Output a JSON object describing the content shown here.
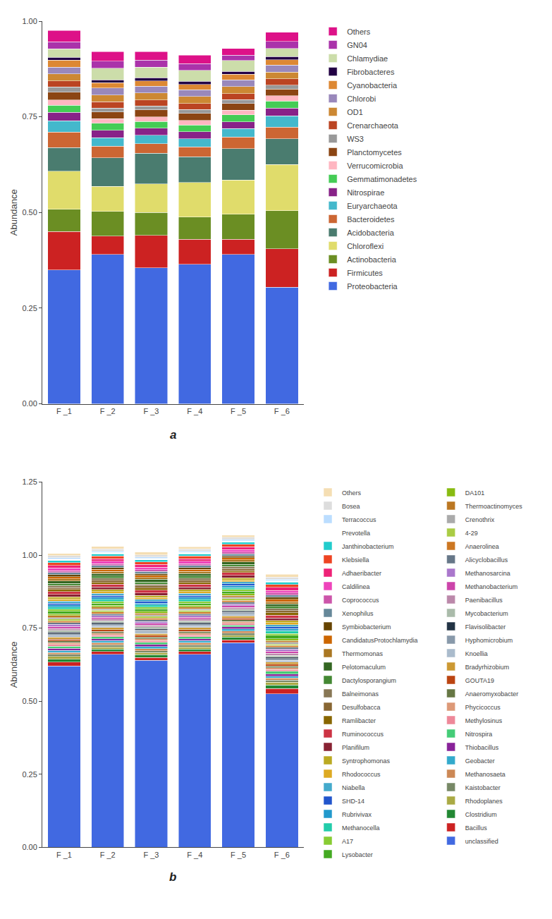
{
  "chart_data": [
    {
      "type": "bar",
      "stacked": true,
      "grid": false,
      "legend": "right",
      "ylabel": "Abundance",
      "annotations": [
        "a"
      ],
      "categories": [
        "F _1",
        "F _2",
        "F _3",
        "F _4",
        "F _5",
        "F _6"
      ],
      "ylim": [
        0.0,
        1.0
      ],
      "yticks": [
        {
          "value": 0.0,
          "label": "0.00"
        },
        0.25,
        {
          "value": 0.5,
          "label": "0.50"
        },
        0.75,
        {
          "value": 1.0,
          "label": "1.00"
        }
      ],
      "series": [
        {
          "name": "Proteobacteria",
          "color": "#4169E1",
          "values": [
            0.35,
            0.39,
            0.355,
            0.365,
            0.39,
            0.305
          ]
        },
        {
          "name": "Firmicutes",
          "color": "#CC2222",
          "values": [
            0.1,
            0.048,
            0.085,
            0.065,
            0.04,
            0.1
          ]
        },
        {
          "name": "Actinobacteria",
          "color": "#6B8E23",
          "values": [
            0.058,
            0.065,
            0.06,
            0.058,
            0.065,
            0.1
          ]
        },
        {
          "name": "Chloroflexi",
          "color": "#E0DC6B",
          "values": [
            0.1,
            0.065,
            0.075,
            0.09,
            0.09,
            0.12
          ]
        },
        {
          "name": "Acidobacteria",
          "color": "#4A7C6F",
          "values": [
            0.062,
            0.075,
            0.08,
            0.068,
            0.082,
            0.068
          ]
        },
        {
          "name": "Bacteroidetes",
          "color": "#CC6633",
          "values": [
            0.04,
            0.03,
            0.025,
            0.025,
            0.03,
            0.03
          ]
        },
        {
          "name": "Euryarchaeota",
          "color": "#44B8CC",
          "values": [
            0.03,
            0.022,
            0.022,
            0.022,
            0.022,
            0.03
          ]
        },
        {
          "name": "Nitrospirae",
          "color": "#882288",
          "values": [
            0.022,
            0.02,
            0.018,
            0.018,
            0.018,
            0.02
          ]
        },
        {
          "name": "Gemmatimonadetes",
          "color": "#44CC55",
          "values": [
            0.018,
            0.018,
            0.018,
            0.018,
            0.018,
            0.018
          ]
        },
        {
          "name": "Verrucomicrobia",
          "color": "#FFB6C1",
          "values": [
            0.014,
            0.012,
            0.012,
            0.012,
            0.012,
            0.014
          ]
        },
        {
          "name": "Planctomycetes",
          "color": "#8B4513",
          "values": [
            0.02,
            0.018,
            0.018,
            0.018,
            0.018,
            0.018
          ]
        },
        {
          "name": "WS3",
          "color": "#999999",
          "values": [
            0.014,
            0.01,
            0.01,
            0.01,
            0.01,
            0.01
          ]
        },
        {
          "name": "Crenarchaeota",
          "color": "#BB4422",
          "values": [
            0.016,
            0.016,
            0.016,
            0.016,
            0.016,
            0.016
          ]
        },
        {
          "name": "OD1",
          "color": "#CC8833",
          "values": [
            0.018,
            0.018,
            0.018,
            0.018,
            0.018,
            0.018
          ]
        },
        {
          "name": "Chlorobi",
          "color": "#9988BB",
          "values": [
            0.018,
            0.018,
            0.018,
            0.018,
            0.018,
            0.018
          ]
        },
        {
          "name": "Cyanobacteria",
          "color": "#DD8833",
          "values": [
            0.018,
            0.014,
            0.014,
            0.014,
            0.014,
            0.014
          ]
        },
        {
          "name": "Fibrobacteres",
          "color": "#220044",
          "values": [
            0.008,
            0.008,
            0.008,
            0.008,
            0.008,
            0.008
          ]
        },
        {
          "name": "Chlamydiae",
          "color": "#CCDDAA",
          "values": [
            0.022,
            0.03,
            0.028,
            0.028,
            0.028,
            0.022
          ]
        },
        {
          "name": "GN04",
          "color": "#AA33AA",
          "values": [
            0.018,
            0.018,
            0.018,
            0.018,
            0.014,
            0.018
          ]
        },
        {
          "name": "Others",
          "color": "#DD1188",
          "values": [
            0.03,
            0.025,
            0.022,
            0.022,
            0.018,
            0.024
          ]
        }
      ]
    },
    {
      "type": "bar",
      "stacked": true,
      "grid": false,
      "legend": "right",
      "ylabel": "Abundance",
      "annotations": [
        "b"
      ],
      "categories": [
        "F _1",
        "F _2",
        "F _3",
        "F _4",
        "F _5",
        "F _6"
      ],
      "ylim": [
        0.0,
        1.25
      ],
      "yticks": [
        {
          "value": 0.0,
          "label": "0.00"
        },
        0.25,
        {
          "value": 0.5,
          "label": "0.50"
        },
        0.75,
        {
          "value": 1.0,
          "label": "1.00"
        },
        1.25
      ],
      "series": [
        {
          "name": "unclassified",
          "color": "#4169E1",
          "values": [
            0.62,
            0.66,
            0.64,
            0.66,
            0.7,
            0.525
          ]
        },
        {
          "name": "Bacillus",
          "color": "#CC2222",
          "values": [
            0.014,
            0.01,
            0.01,
            0.01,
            0.01,
            0.018
          ]
        },
        {
          "name": "Clostridium",
          "color": "#228833",
          "values": [
            0.01,
            0.009,
            0.009,
            0.009,
            0.009,
            0.013
          ]
        },
        {
          "name": "Rhodoplanes",
          "color": "#AAAA44",
          "values": [
            0.009,
            0.007,
            0.007,
            0.007,
            0.007,
            0.009
          ]
        },
        {
          "name": "Kaistobacter",
          "color": "#778866",
          "values": [
            0.007,
            0.007,
            0.007,
            0.007,
            0.007,
            0.007
          ]
        },
        {
          "name": "Methanosaeta",
          "color": "#CC8855",
          "values": [
            0.007,
            0.007,
            0.007,
            0.007,
            0.007,
            0.007
          ]
        },
        {
          "name": "Geobacter",
          "color": "#33AACC",
          "values": [
            0.007,
            0.007,
            0.007,
            0.007,
            0.007,
            0.007
          ]
        },
        {
          "name": "Thiobacillus",
          "color": "#882299",
          "values": [
            0.007,
            0.007,
            0.007,
            0.007,
            0.007,
            0.007
          ]
        },
        {
          "name": "Nitrospira",
          "color": "#44CC77",
          "values": [
            0.007,
            0.007,
            0.007,
            0.007,
            0.007,
            0.009
          ]
        },
        {
          "name": "Methylosinus",
          "color": "#EE8899",
          "values": [
            0.006,
            0.006,
            0.006,
            0.006,
            0.006,
            0.006
          ]
        },
        {
          "name": "Phycicoccus",
          "color": "#DD9977",
          "values": [
            0.006,
            0.006,
            0.006,
            0.006,
            0.006,
            0.006
          ]
        },
        {
          "name": "Anaeromyxobacter",
          "color": "#667744",
          "values": [
            0.006,
            0.006,
            0.006,
            0.006,
            0.006,
            0.007
          ]
        },
        {
          "name": "GOUTA19",
          "color": "#BB4411",
          "values": [
            0.006,
            0.006,
            0.006,
            0.006,
            0.006,
            0.006
          ]
        },
        {
          "name": "Bradyrhizobium",
          "color": "#CC9933",
          "values": [
            0.007,
            0.007,
            0.007,
            0.007,
            0.007,
            0.007
          ]
        },
        {
          "name": "Knoellia",
          "color": "#AABBCC",
          "values": [
            0.006,
            0.006,
            0.006,
            0.006,
            0.006,
            0.006
          ]
        },
        {
          "name": "Hyphomicrobium",
          "color": "#8899AA",
          "values": [
            0.006,
            0.006,
            0.006,
            0.006,
            0.006,
            0.006
          ]
        },
        {
          "name": "Flavisolibacter",
          "color": "#223344",
          "values": [
            0.005,
            0.005,
            0.005,
            0.005,
            0.005,
            0.005
          ]
        },
        {
          "name": "Mycobacterium",
          "color": "#AABBAA",
          "values": [
            0.006,
            0.006,
            0.006,
            0.006,
            0.006,
            0.006
          ]
        },
        {
          "name": "Paenibacillus",
          "color": "#BB88AA",
          "values": [
            0.007,
            0.006,
            0.006,
            0.006,
            0.006,
            0.007
          ]
        },
        {
          "name": "Methanobacterium",
          "color": "#CC44AA",
          "values": [
            0.007,
            0.006,
            0.006,
            0.006,
            0.006,
            0.007
          ]
        },
        {
          "name": "Methanosarcina",
          "color": "#AA77CC",
          "values": [
            0.007,
            0.006,
            0.006,
            0.006,
            0.006,
            0.007
          ]
        },
        {
          "name": "Alicyclobacillus",
          "color": "#667788",
          "values": [
            0.006,
            0.006,
            0.006,
            0.006,
            0.006,
            0.006
          ]
        },
        {
          "name": "Anaerolinea",
          "color": "#CC7722",
          "values": [
            0.006,
            0.006,
            0.006,
            0.006,
            0.006,
            0.006
          ]
        },
        {
          "name": "4-29",
          "color": "#AACC44",
          "values": [
            0.006,
            0.006,
            0.006,
            0.006,
            0.006,
            0.006
          ]
        },
        {
          "name": "Crenothrix",
          "color": "#AAAAAA",
          "values": [
            0.005,
            0.005,
            0.005,
            0.005,
            0.005,
            0.005
          ]
        },
        {
          "name": "Thermoactinomyces",
          "color": "#BB7722",
          "values": [
            0.007,
            0.006,
            0.006,
            0.006,
            0.006,
            0.007
          ]
        },
        {
          "name": "DA101",
          "color": "#88BB11",
          "values": [
            0.006,
            0.006,
            0.006,
            0.006,
            0.006,
            0.006
          ]
        },
        {
          "name": "Lysobacter",
          "color": "#44AA22",
          "values": [
            0.009,
            0.008,
            0.008,
            0.008,
            0.008,
            0.011
          ]
        },
        {
          "name": "A17",
          "color": "#88CC33",
          "values": [
            0.007,
            0.006,
            0.006,
            0.006,
            0.006,
            0.007
          ]
        },
        {
          "name": "Methanocella",
          "color": "#22CCAA",
          "values": [
            0.007,
            0.007,
            0.007,
            0.007,
            0.007,
            0.009
          ]
        },
        {
          "name": "Rubrivivax",
          "color": "#2299CC",
          "values": [
            0.007,
            0.007,
            0.007,
            0.007,
            0.007,
            0.007
          ]
        },
        {
          "name": "SHD-14",
          "color": "#2255CC",
          "values": [
            0.007,
            0.006,
            0.006,
            0.006,
            0.006,
            0.007
          ]
        },
        {
          "name": "Niabella",
          "color": "#44AACC",
          "values": [
            0.007,
            0.007,
            0.007,
            0.007,
            0.007,
            0.007
          ]
        },
        {
          "name": "Rhodococcus",
          "color": "#DDAA22",
          "values": [
            0.007,
            0.006,
            0.006,
            0.006,
            0.006,
            0.007
          ]
        },
        {
          "name": "Syntrophomonas",
          "color": "#BBAA22",
          "values": [
            0.007,
            0.007,
            0.007,
            0.007,
            0.007,
            0.007
          ]
        },
        {
          "name": "Planifilum",
          "color": "#882233",
          "values": [
            0.009,
            0.009,
            0.009,
            0.009,
            0.009,
            0.009
          ]
        },
        {
          "name": "Ruminococcus",
          "color": "#CC3344",
          "values": [
            0.009,
            0.009,
            0.009,
            0.009,
            0.009,
            0.009
          ]
        },
        {
          "name": "Ramlibacter",
          "color": "#886600",
          "values": [
            0.007,
            0.007,
            0.007,
            0.007,
            0.007,
            0.009
          ]
        },
        {
          "name": "Desulfobacca",
          "color": "#886633",
          "values": [
            0.007,
            0.007,
            0.007,
            0.007,
            0.007,
            0.007
          ]
        },
        {
          "name": "Balneimonas",
          "color": "#887755",
          "values": [
            0.007,
            0.007,
            0.007,
            0.007,
            0.007,
            0.007
          ]
        },
        {
          "name": "Dactylosporangium",
          "color": "#448833",
          "values": [
            0.007,
            0.007,
            0.007,
            0.007,
            0.007,
            0.007
          ]
        },
        {
          "name": "Pelotomaculum",
          "color": "#336622",
          "values": [
            0.009,
            0.009,
            0.009,
            0.009,
            0.009,
            0.009
          ]
        },
        {
          "name": "Thermomonas",
          "color": "#AA7722",
          "values": [
            0.007,
            0.007,
            0.007,
            0.007,
            0.007,
            0.007
          ]
        },
        {
          "name": "CandidatusProtochlamydia",
          "color": "#CC6600",
          "values": [
            0.007,
            0.007,
            0.007,
            0.007,
            0.007,
            0.009
          ]
        },
        {
          "name": "Symbiobacterium",
          "color": "#664400",
          "values": [
            0.007,
            0.006,
            0.006,
            0.006,
            0.006,
            0.007
          ]
        },
        {
          "name": "Xenophilus",
          "color": "#668899",
          "values": [
            0.007,
            0.007,
            0.007,
            0.007,
            0.007,
            0.007
          ]
        },
        {
          "name": "Coprococcus",
          "color": "#CC55AA",
          "values": [
            0.007,
            0.006,
            0.006,
            0.006,
            0.006,
            0.007
          ]
        },
        {
          "name": "Caldilinea",
          "color": "#EE44BB",
          "values": [
            0.009,
            0.009,
            0.009,
            0.009,
            0.009,
            0.009
          ]
        },
        {
          "name": "Adhaeribacter",
          "color": "#EE2277",
          "values": [
            0.009,
            0.009,
            0.009,
            0.009,
            0.009,
            0.011
          ]
        },
        {
          "name": "Klebsiella",
          "color": "#EE4422",
          "values": [
            0.009,
            0.009,
            0.009,
            0.009,
            0.009,
            0.009
          ]
        },
        {
          "name": "Janthinobacterium",
          "color": "#22CCCC",
          "values": [
            0.007,
            0.007,
            0.007,
            0.007,
            0.007,
            0.009
          ]
        },
        {
          "name": "Prevotella",
          "color": "#FFFFFF",
          "values": [
            0.005,
            0.005,
            0.005,
            0.005,
            0.005,
            0.005
          ]
        },
        {
          "name": "Terracoccus",
          "color": "#BBDDFF",
          "values": [
            0.005,
            0.005,
            0.005,
            0.005,
            0.005,
            0.005
          ]
        },
        {
          "name": "Bosea",
          "color": "#DDDDDD",
          "values": [
            0.007,
            0.007,
            0.007,
            0.007,
            0.007,
            0.007
          ]
        },
        {
          "name": "Others",
          "color": "#F5DEB3",
          "values": [
            0.007,
            0.009,
            0.009,
            0.007,
            0.007,
            0.009
          ]
        }
      ]
    }
  ]
}
